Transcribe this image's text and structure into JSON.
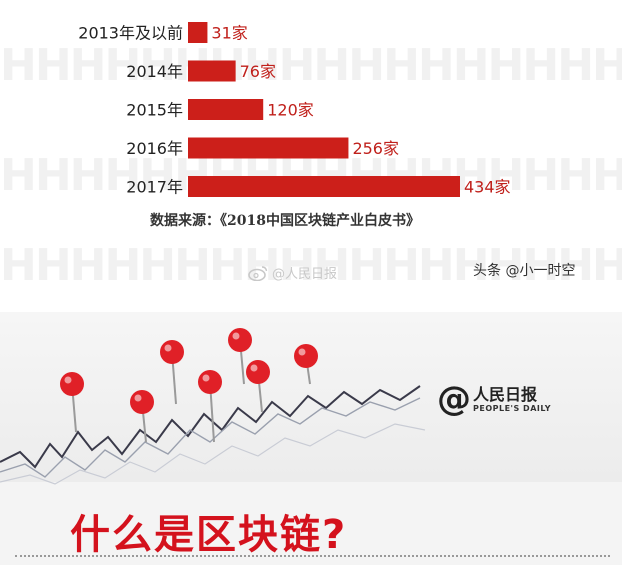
{
  "chart_data": {
    "type": "bar",
    "orientation": "horizontal",
    "categories": [
      "2013年及以前",
      "2014年",
      "2015年",
      "2016年",
      "2017年"
    ],
    "values": [
      31,
      76,
      120,
      256,
      434
    ],
    "value_labels": [
      "31家",
      "76家",
      "120家",
      "256家",
      "434家"
    ],
    "bar_color": "#cc1f1a",
    "label_color": "#c0201b",
    "grid": false,
    "legend": "none"
  },
  "source_note": "数据来源：《2018中国区块链产业白皮书》",
  "watermark": {
    "weibo": "@人民日报",
    "credit": "头条 @小一时空"
  },
  "banner": {
    "logo_cn": "人民日报",
    "logo_en": "PEOPLE'S DAILY",
    "headline": "什么是区块链?",
    "pin_color": "#e02027"
  }
}
